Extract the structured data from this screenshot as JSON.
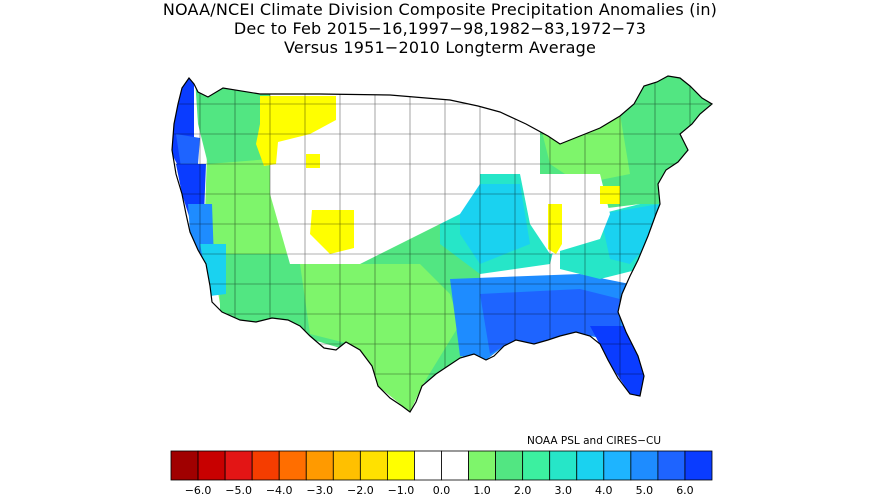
{
  "title": {
    "line1": "NOAA/NCEI Climate Division Composite Precipitation Anomalies (in)",
    "line2": "Dec to Feb  2015−16,1997−98,1982−83,1972−73",
    "line3": "Versus 1951−2010 Longterm Average"
  },
  "credit": "NOAA PSL and CIRES−CU",
  "colorbar": {
    "tick_labels": [
      "−6.0",
      "−5.0",
      "−4.0",
      "−3.0",
      "−2.0",
      "−1.0",
      "0.0",
      "1.0",
      "2.0",
      "3.0",
      "4.0",
      "5.0",
      "6.0"
    ],
    "colors": [
      "#a00000",
      "#c80000",
      "#e31515",
      "#f53d00",
      "#ff6e00",
      "#ff9a00",
      "#ffc000",
      "#ffe100",
      "#ffff00",
      "#ffffff",
      "#ffffff",
      "#7ef56b",
      "#52e682",
      "#3cf0a0",
      "#26e6c8",
      "#1ad2f0",
      "#1eb4ff",
      "#1e8cff",
      "#1e64ff",
      "#0a3cff"
    ]
  },
  "map_regions": [
    {
      "name": "washington-coast",
      "color": "#0a3cff"
    },
    {
      "name": "oregon-coast",
      "color": "#1e64ff"
    },
    {
      "name": "north-california",
      "color": "#0a3cff"
    },
    {
      "name": "central-california",
      "color": "#1e8cff"
    },
    {
      "name": "south-california",
      "color": "#1ad2f0"
    },
    {
      "name": "pacific-northwest-interior",
      "color": "#52e682"
    },
    {
      "name": "great-basin",
      "color": "#7ef56b"
    },
    {
      "name": "southwest",
      "color": "#52e682"
    },
    {
      "name": "idaho-montana",
      "color": "#ffff00"
    },
    {
      "name": "utah",
      "color": "#ffff00"
    },
    {
      "name": "northern-plains",
      "color": "#ffffff"
    },
    {
      "name": "central-plains",
      "color": "#52e682"
    },
    {
      "name": "texas",
      "color": "#7ef56b"
    },
    {
      "name": "gulf-coast",
      "color": "#1e8cff"
    },
    {
      "name": "southeast",
      "color": "#1e64ff"
    },
    {
      "name": "florida",
      "color": "#0a3cff"
    },
    {
      "name": "midwest",
      "color": "#26e6c8"
    },
    {
      "name": "ohio-valley",
      "color": "#ffffff"
    },
    {
      "name": "appalachia",
      "color": "#ffff00"
    },
    {
      "name": "northeast",
      "color": "#52e682"
    },
    {
      "name": "mid-atlantic",
      "color": "#26e6c8"
    }
  ]
}
